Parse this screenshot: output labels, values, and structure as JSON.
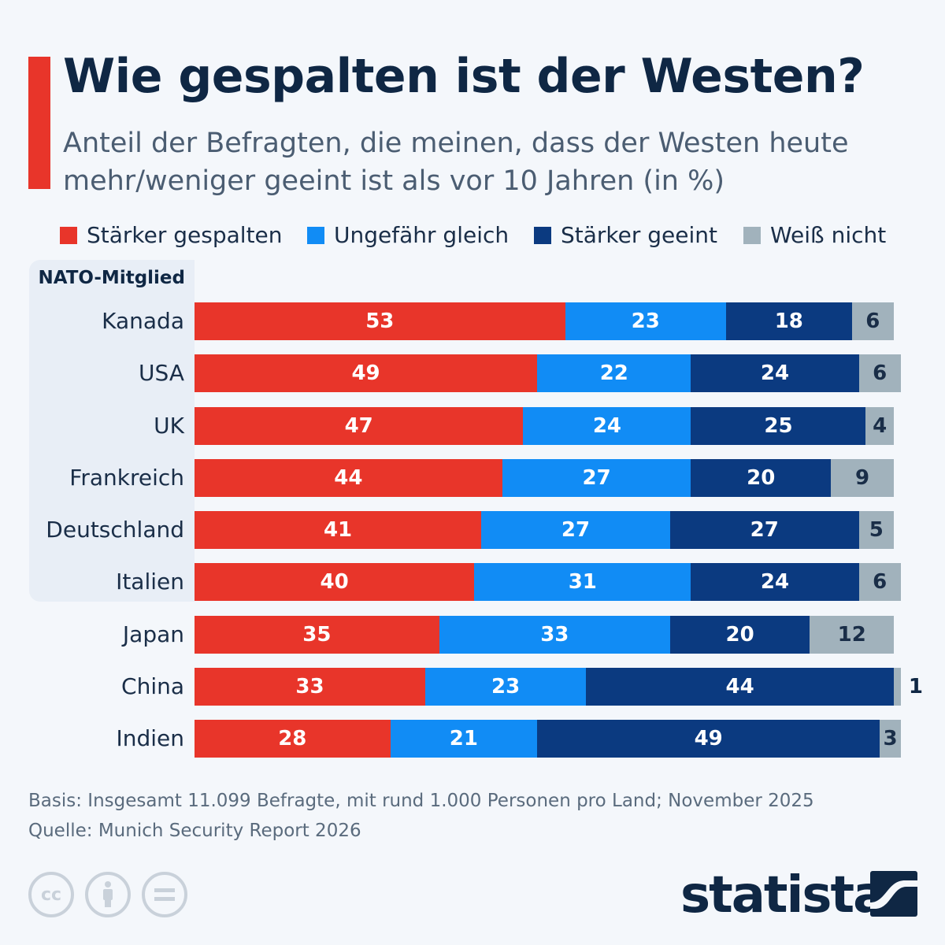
{
  "title": "Wie gespalten ist der Westen?",
  "subtitle": "Anteil der Befragten, die meinen, dass der Westen heute mehr/weniger geeint ist als vor 10 Jahren (in %)",
  "group_label": "NATO-Mitglied",
  "notes": {
    "basis": "Basis: Insgesamt 11.099 Befragte, mit rund 1.000 Personen pro Land; November 2025",
    "source": "Quelle: Munich Security Report 2026"
  },
  "logo": "statista",
  "chart_data": {
    "type": "bar",
    "orientation": "horizontal",
    "stacked": true,
    "categories": [
      "Kanada",
      "USA",
      "UK",
      "Frankreich",
      "Deutschland",
      "Italien",
      "Japan",
      "China",
      "Indien"
    ],
    "series": [
      {
        "name": "Stärker gespalten",
        "color": "#e8352a",
        "values": [
          53,
          49,
          47,
          44,
          41,
          40,
          35,
          33,
          28
        ]
      },
      {
        "name": "Ungefähr gleich",
        "color": "#118cf5",
        "values": [
          23,
          22,
          24,
          27,
          27,
          31,
          33,
          23,
          21
        ]
      },
      {
        "name": "Stärker geeint",
        "color": "#0b3a80",
        "values": [
          18,
          24,
          25,
          20,
          27,
          24,
          20,
          44,
          49
        ]
      },
      {
        "name": "Weiß nicht",
        "color": "#a1b2bc",
        "values": [
          6,
          6,
          4,
          9,
          5,
          6,
          12,
          1,
          3
        ]
      }
    ],
    "legend": "top",
    "xlim": [
      0,
      100
    ],
    "grid": false
  }
}
